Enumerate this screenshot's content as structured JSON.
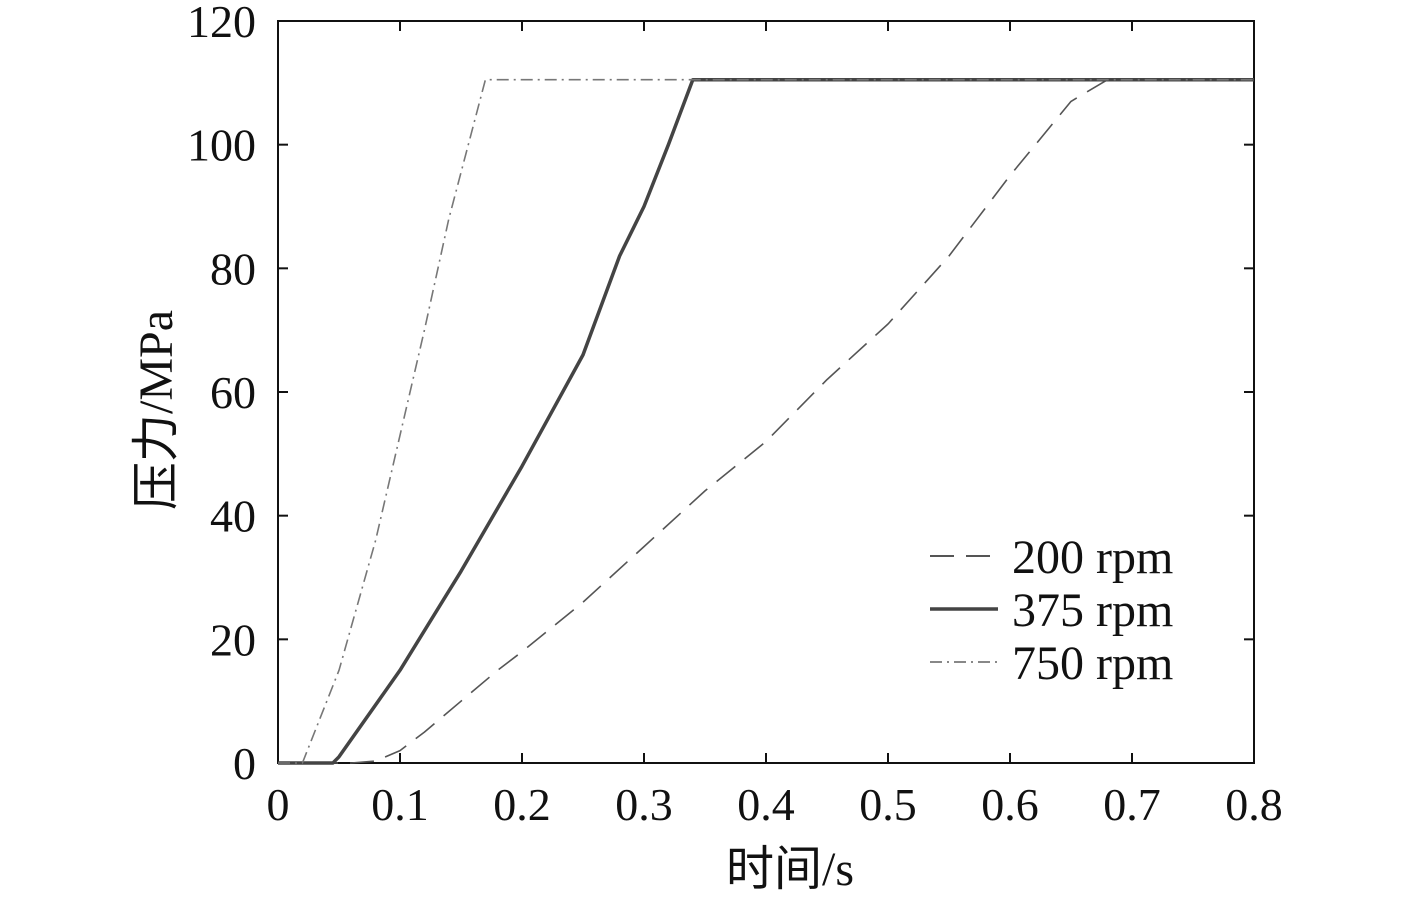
{
  "chart_data": {
    "type": "line",
    "title": "",
    "xlabel": "时间/s",
    "ylabel": "压力/MPa",
    "xlim": [
      0,
      0.8
    ],
    "ylim": [
      0,
      120
    ],
    "xticks": [
      "0",
      "0.1",
      "0.2",
      "0.3",
      "0.4",
      "0.5",
      "0.6",
      "0.7",
      "0.8"
    ],
    "yticks": [
      "0",
      "20",
      "40",
      "60",
      "80",
      "100",
      "120"
    ],
    "grid": false,
    "legend_position": "bottom-right",
    "series": [
      {
        "name": "200 rpm",
        "style": "dashed",
        "color": "#555555",
        "x": [
          0,
          0.06,
          0.08,
          0.1,
          0.12,
          0.15,
          0.18,
          0.2,
          0.25,
          0.3,
          0.35,
          0.4,
          0.45,
          0.5,
          0.55,
          0.6,
          0.65,
          0.68,
          0.8
        ],
        "y": [
          0,
          0,
          0.3,
          2,
          5,
          10,
          15,
          18,
          26,
          35,
          44,
          52,
          62,
          71,
          82,
          95,
          107,
          110.5,
          110.5
        ]
      },
      {
        "name": "375 rpm",
        "style": "solid",
        "color": "#444444",
        "x": [
          0,
          0.045,
          0.05,
          0.1,
          0.15,
          0.2,
          0.25,
          0.28,
          0.3,
          0.32,
          0.34,
          0.8
        ],
        "y": [
          0,
          0,
          1,
          15,
          31,
          48,
          66,
          82,
          90,
          100,
          110.5,
          110.5
        ]
      },
      {
        "name": "750 rpm",
        "style": "dashdot",
        "color": "#777777",
        "x": [
          0,
          0.02,
          0.05,
          0.08,
          0.1,
          0.12,
          0.14,
          0.16,
          0.17,
          0.8
        ],
        "y": [
          0,
          0,
          15,
          36,
          53,
          70,
          88,
          103,
          110.5,
          110.5
        ]
      }
    ]
  }
}
